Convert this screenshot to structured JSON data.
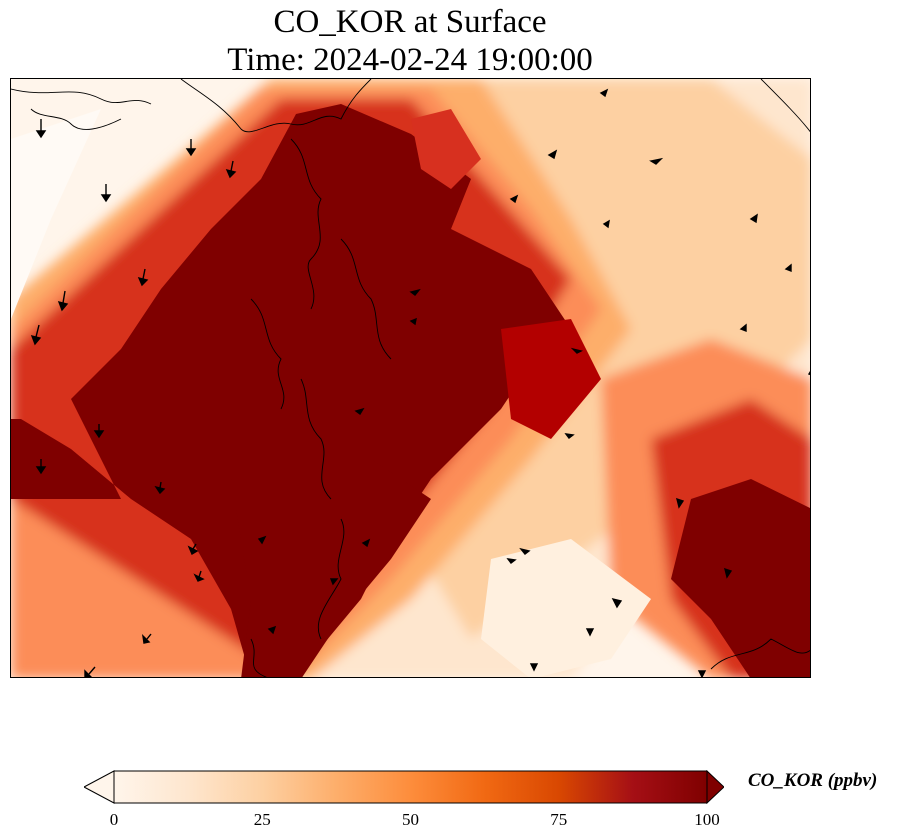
{
  "title_line1": "CO_KOR at Surface",
  "title_line2": "Time: 2024-02-24 19:00:00",
  "colorbar": {
    "label": "CO_KOR (ppbv)",
    "min": 0,
    "max": 100,
    "ticks": [
      "0",
      "25",
      "50",
      "75",
      "100"
    ],
    "extend": "both",
    "colormap": "OrRd",
    "stops": [
      "#fff5eb",
      "#fee6ce",
      "#fdd0a2",
      "#fdae6b",
      "#fd8d3c",
      "#f16913",
      "#d94801",
      "#a50f15",
      "#7f0000"
    ]
  },
  "map": {
    "features": [
      "coastline",
      "wind-vectors",
      "concentration-field"
    ],
    "plume_color": "#7f0000",
    "background_color": "#fff5eb"
  }
}
